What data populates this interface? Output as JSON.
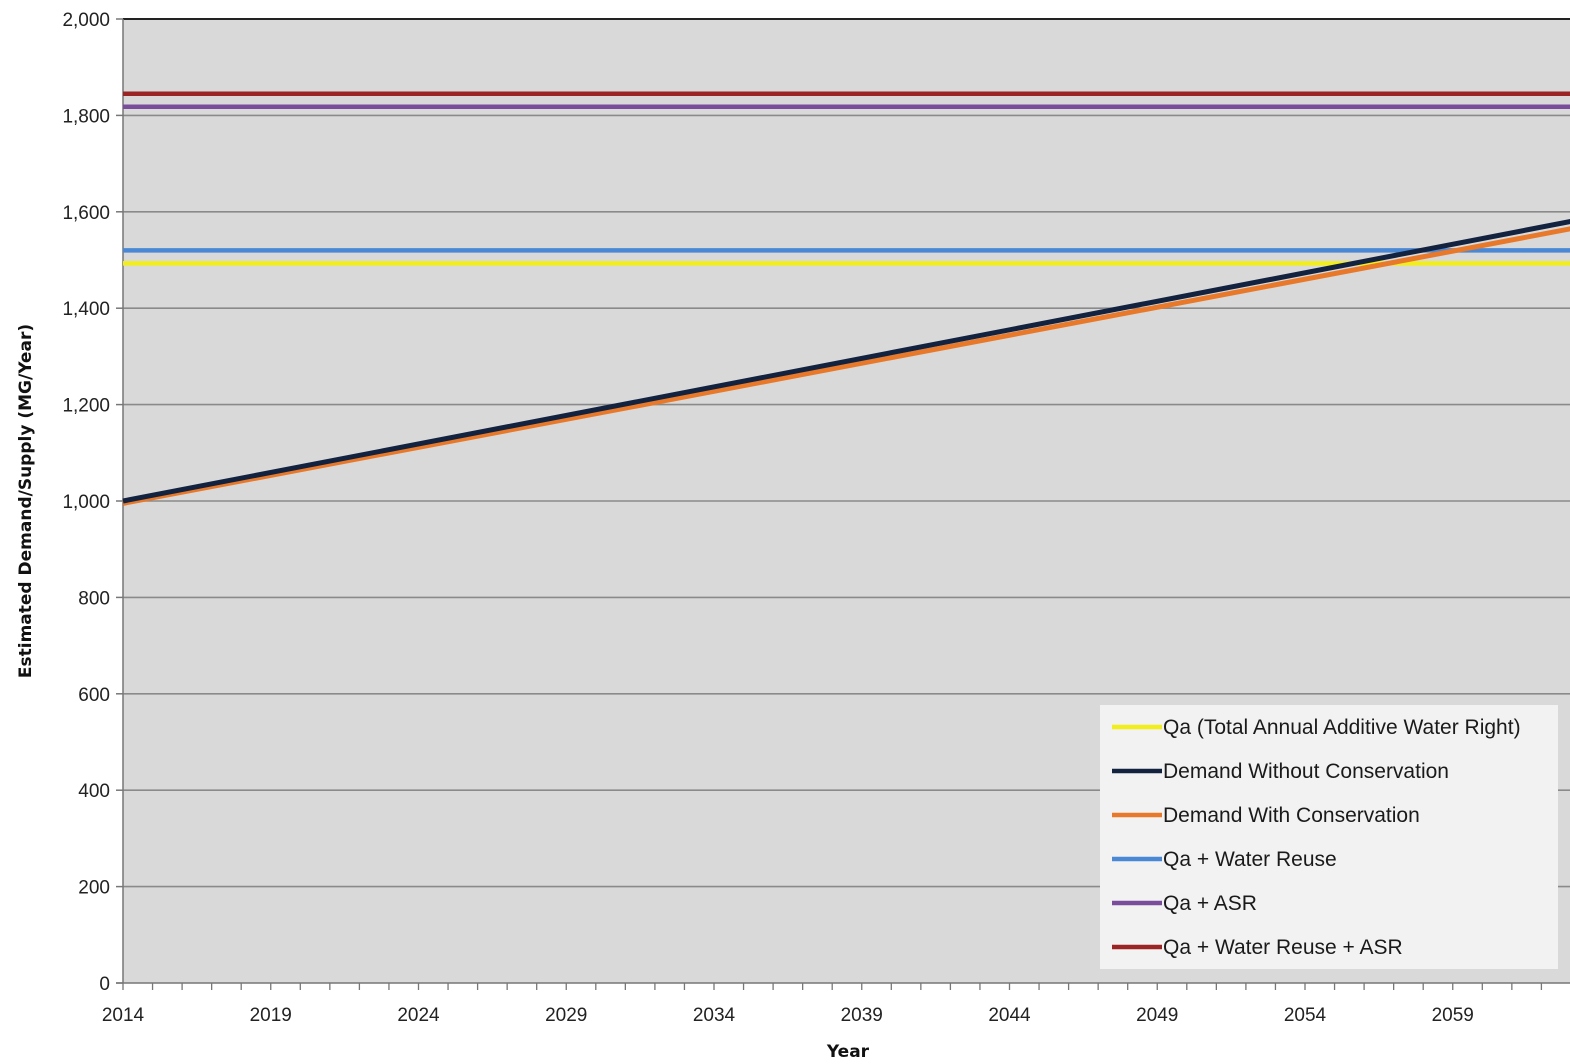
{
  "chart_data": {
    "type": "line",
    "xlabel": "Year",
    "ylabel": "Estimated Demand/Supply (MG/Year)",
    "xlim": [
      2014,
      2063
    ],
    "ylim": [
      0,
      2000
    ],
    "x_ticks": [
      "2014",
      "2019",
      "2024",
      "2029",
      "2034",
      "2039",
      "2044",
      "2049",
      "2054",
      "2059"
    ],
    "y_ticks": [
      "0",
      "200",
      "400",
      "600",
      "800",
      "1,000",
      "1,200",
      "1,400",
      "1,600",
      "1,800",
      "2,000"
    ],
    "grid": true,
    "legend_position": "bottom-right",
    "series": [
      {
        "name": "Qa (Total Annual Additive Water Right)",
        "color": "#f2ee1c",
        "x": [
          2014,
          2063
        ],
        "y": [
          1493,
          1493
        ]
      },
      {
        "name": "Demand Without Conservation",
        "color": "#13233f",
        "x": [
          2014,
          2063
        ],
        "y": [
          1000,
          1580
        ]
      },
      {
        "name": "Demand With Conservation",
        "color": "#e8792a",
        "x": [
          2014,
          2063
        ],
        "y": [
          995,
          1565
        ]
      },
      {
        "name": "Qa + Water Reuse",
        "color": "#4a88d6",
        "x": [
          2014,
          2063
        ],
        "y": [
          1520,
          1520
        ]
      },
      {
        "name": "Qa + ASR",
        "color": "#7a4d9c",
        "x": [
          2014,
          2063
        ],
        "y": [
          1818,
          1818
        ]
      },
      {
        "name": "Qa + Water Reuse + ASR",
        "color": "#9b2424",
        "x": [
          2014,
          2063
        ],
        "y": [
          1845,
          1845
        ]
      }
    ]
  }
}
